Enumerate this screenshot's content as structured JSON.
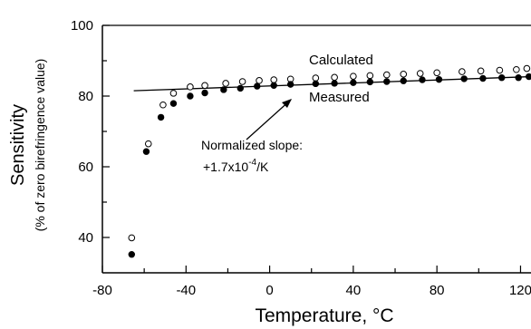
{
  "chart_data": {
    "type": "scatter",
    "xlabel": "Temperature, °C",
    "ylabel": "Sensitivity",
    "ylabel_sub": "(% of zero birefringence value)",
    "xlim": [
      -80,
      125
    ],
    "ylim": [
      30,
      100
    ],
    "x_ticks": [
      -80,
      -40,
      0,
      40,
      80
    ],
    "x_ticks_clipped": [
      120
    ],
    "y_ticks": [
      40,
      60,
      80,
      100
    ],
    "grid": false,
    "series": [
      {
        "name": "Calculated",
        "marker": "open-circle",
        "points": [
          [
            -66,
            39.9
          ],
          [
            -58,
            66.5
          ],
          [
            -51,
            77.5
          ],
          [
            -46,
            80.8
          ],
          [
            -38,
            82.6
          ],
          [
            -31,
            83.0
          ],
          [
            -21,
            83.6
          ],
          [
            -13,
            84.1
          ],
          [
            -5,
            84.4
          ],
          [
            2,
            84.6
          ],
          [
            10,
            84.8
          ],
          [
            22,
            85.1
          ],
          [
            31,
            85.3
          ],
          [
            40,
            85.6
          ],
          [
            48,
            85.8
          ],
          [
            56,
            86.0
          ],
          [
            64,
            86.2
          ],
          [
            72,
            86.4
          ],
          [
            80,
            86.6
          ],
          [
            92,
            86.9
          ],
          [
            101,
            87.1
          ],
          [
            110,
            87.3
          ],
          [
            118,
            87.5
          ],
          [
            123,
            87.8
          ]
        ]
      },
      {
        "name": "Measured",
        "marker": "filled-circle",
        "points": [
          [
            -66,
            35.2
          ],
          [
            -59,
            64.3
          ],
          [
            -52,
            74.0
          ],
          [
            -46,
            77.9
          ],
          [
            -38,
            80.0
          ],
          [
            -31,
            80.9
          ],
          [
            -22,
            81.8
          ],
          [
            -14,
            82.2
          ],
          [
            -6,
            82.8
          ],
          [
            2,
            83.0
          ],
          [
            10,
            83.3
          ],
          [
            22,
            83.5
          ],
          [
            31,
            83.6
          ],
          [
            40,
            83.8
          ],
          [
            48,
            84.0
          ],
          [
            56,
            84.1
          ],
          [
            64,
            84.3
          ],
          [
            73,
            84.6
          ],
          [
            81,
            84.7
          ],
          [
            93,
            84.9
          ],
          [
            102,
            85.0
          ],
          [
            111,
            85.2
          ],
          [
            119,
            85.2
          ],
          [
            124,
            85.5
          ]
        ]
      }
    ],
    "fit_line": {
      "x": [
        -65,
        125
      ],
      "y": [
        81.5,
        85.5
      ]
    },
    "annotations": {
      "calculated": "Calculated",
      "measured": "Measured",
      "slope_line1": "Normalized  slope:",
      "slope_line2_prefix": "+1.7x10",
      "slope_line2_exp": "-4",
      "slope_line2_suffix": "/K"
    }
  }
}
